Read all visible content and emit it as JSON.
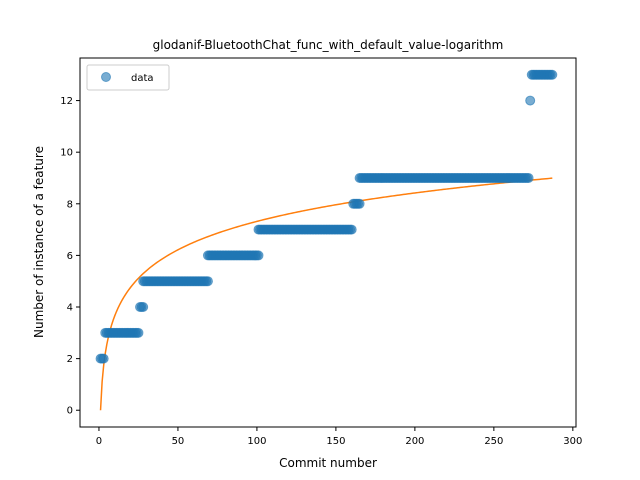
{
  "chart_data": {
    "type": "scatter",
    "title": "glodanif-BluetoothChat_func_with_default_value-logarithm",
    "xlabel": "Commit number",
    "ylabel": "Number of instance of a feature",
    "xlim": [
      -12,
      302
    ],
    "ylim": [
      -0.65,
      13.65
    ],
    "xticks": [
      0,
      50,
      100,
      150,
      200,
      250,
      300
    ],
    "yticks": [
      0,
      2,
      4,
      6,
      8,
      10,
      12
    ],
    "grid": false,
    "legend": {
      "position": "top-left",
      "entries": [
        "data"
      ]
    },
    "colors": {
      "data": "#1f77b4",
      "fit": "#ff7f0e"
    },
    "series": [
      {
        "name": "data",
        "kind": "scatter",
        "segments": [
          {
            "x_start": 1,
            "x_end": 3,
            "y": 2
          },
          {
            "x_start": 4,
            "x_end": 25,
            "y": 3
          },
          {
            "x_start": 26,
            "x_end": 28,
            "y": 4
          },
          {
            "x_start": 28,
            "x_end": 69,
            "y": 5
          },
          {
            "x_start": 69,
            "x_end": 101,
            "y": 6
          },
          {
            "x_start": 101,
            "x_end": 160,
            "y": 7
          },
          {
            "x_start": 161,
            "x_end": 165,
            "y": 8
          },
          {
            "x_start": 165,
            "x_end": 272,
            "y": 9
          },
          {
            "x_start": 273,
            "x_end": 273,
            "y": 12
          },
          {
            "x_start": 274,
            "x_end": 287,
            "y": 13
          }
        ]
      },
      {
        "name": "",
        "kind": "line",
        "model": "logarithmic",
        "x_range": [
          1,
          287
        ],
        "coefficients": {
          "a": 1.5891,
          "b": 0.0
        }
      }
    ]
  }
}
